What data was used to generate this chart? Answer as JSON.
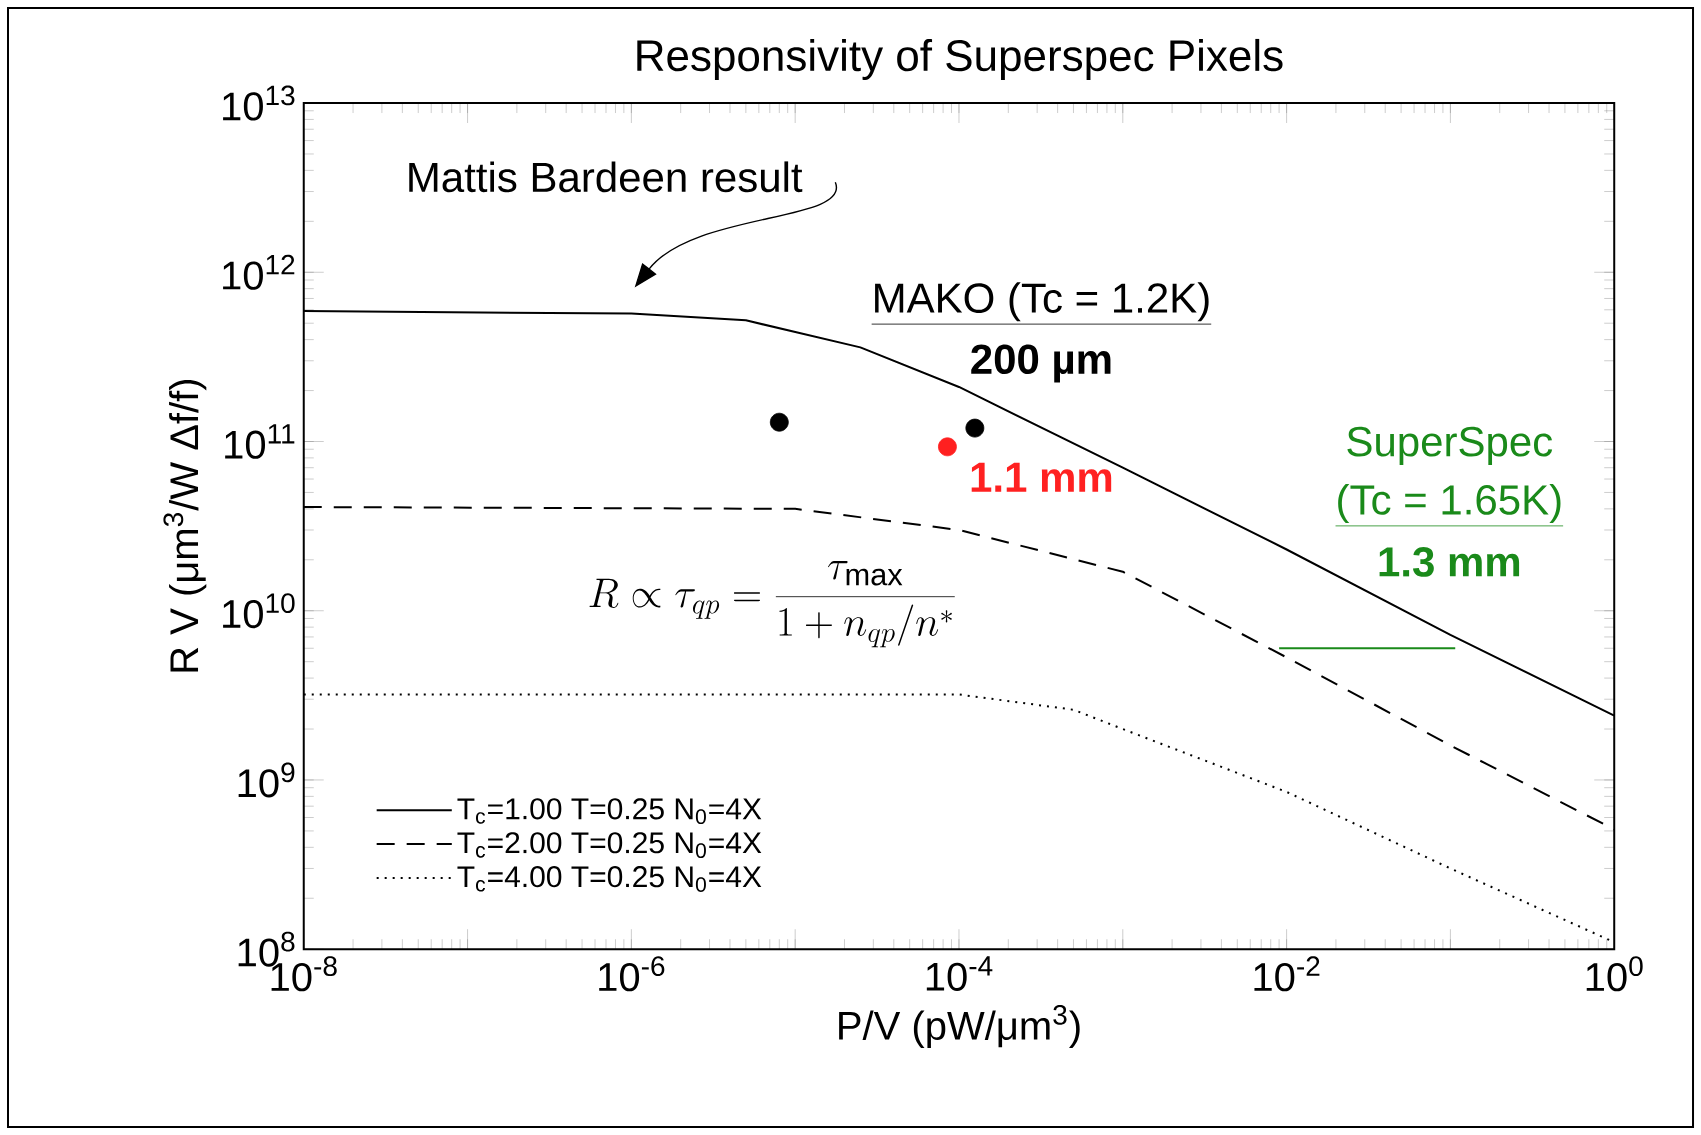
{
  "chart_data": {
    "type": "line",
    "title": "Responsivity of Superspec Pixels",
    "xlabel": "P/V (pW/μm$^{3}$)",
    "ylabel": "R V (μm$^{3}$/W Δf/f)",
    "log": "xy",
    "legend": "bottom left",
    "xlim": [
      1e-08,
      1
    ],
    "ylim": [
      100000000.0,
      10000000000000.0
    ],
    "xticks": [
      {
        "value": 1e-08,
        "label": "10$^{-8}$"
      },
      {
        "value": 1e-07,
        "label": null
      },
      {
        "value": 1e-06,
        "label": "10$^{-6}$"
      },
      {
        "value": 1e-05,
        "label": null
      },
      {
        "value": 0.0001,
        "label": "10$^{-4}$"
      },
      {
        "value": 0.001,
        "label": null
      },
      {
        "value": 0.01,
        "label": "10$^{-2}$"
      },
      {
        "value": 0.1,
        "label": null
      },
      {
        "value": 1,
        "label": "10$^{0}$"
      }
    ],
    "yticks": [
      {
        "value": 100000000.0,
        "label": "10$^{8}$"
      },
      {
        "value": 1000000000.0,
        "label": "10$^{9}$"
      },
      {
        "value": 10000000000.0,
        "label": "10$^{10}$"
      },
      {
        "value": 100000000000.0,
        "label": "10$^{11}$"
      },
      {
        "value": 1000000000000.0,
        "label": "10$^{12}$"
      },
      {
        "value": 10000000000000.0,
        "label": "10$^{13}$"
      }
    ],
    "series": [
      {
        "name": "T$_{c}$=1.00 T=0.25 N$_{0}$=4X",
        "color": "#000000",
        "line_style": "solid",
        "x": [
          1e-08,
          1e-06,
          5e-06,
          2.5e-05,
          0.0001,
          0.001,
          0.01,
          0.1,
          1
        ],
        "values": [
          590000000000.0,
          570000000000.0,
          520000000000.0,
          360000000000.0,
          210000000000.0,
          70000000000.0,
          23000000000.0,
          7200000000.0,
          2400000000.0
        ]
      },
      {
        "name": "T$_{c}$=2.00 T=0.25 N$_{0}$=4X",
        "color": "#000000",
        "line_style": "dashed",
        "x": [
          1e-08,
          1e-05,
          0.0001,
          0.001,
          0.01,
          0.1,
          1
        ],
        "values": [
          41000000000.0,
          40000000000.0,
          30000000000.0,
          17000000000.0,
          5300000000.0,
          1600000000.0,
          510000000.0
        ]
      },
      {
        "name": "T$_{c}$=4.00 T=0.25 N$_{0}$=4X",
        "color": "#000000",
        "line_style": "dotted",
        "x": [
          1e-08,
          0.0001,
          0.0005,
          0.001,
          0.01,
          0.1,
          1
        ],
        "values": [
          3200000000.0,
          3200000000.0,
          2600000000.0,
          2000000000.0,
          850000000.0,
          300000000.0,
          110000000.0
        ]
      },
      {
        "type": "scatter",
        "marker": "circle",
        "color": "#000000",
        "x": [
          8e-06,
          0.000125
        ],
        "values": [
          130000000000.0,
          120000000000.0
        ]
      },
      {
        "type": "scatter",
        "marker": "circle",
        "color": "#ff2020",
        "x": [
          8.5e-05
        ],
        "values": [
          93000000000.0
        ]
      },
      {
        "color": "#1a8a1a",
        "line_style": "solid",
        "x": [
          0.009,
          0.107
        ],
        "values": [
          6000000000.0,
          6000000000.0
        ]
      }
    ],
    "annotations": [
      "Mattis Bardeen result",
      "MAKO (Tc = 1.2K)",
      "**200 µm**",
      "**1.1 mm**",
      "SuperSpec",
      "(Tc = 1.65K)",
      "**1.3 mm**",
      "R \\propto \\tau_{qp} = \\frac{\\tau_{\\mathrm{max}}}{1+n_{qp}/n^{*}}"
    ]
  }
}
